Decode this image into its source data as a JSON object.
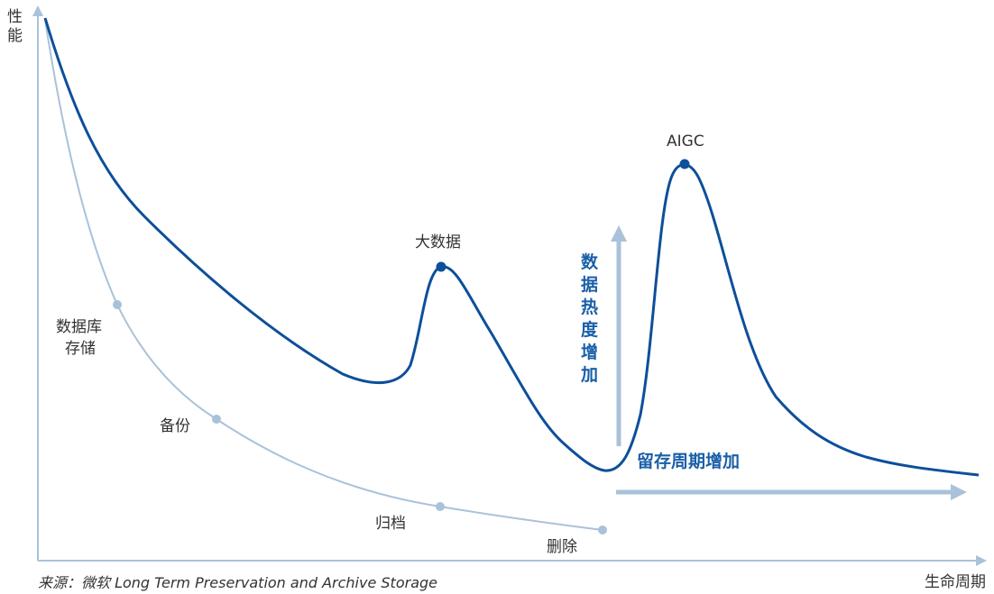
{
  "axes": {
    "y_label_line1": "性",
    "y_label_line2": "能",
    "x_label": "生命周期"
  },
  "labels": {
    "db_storage_line1": "数据库",
    "db_storage_line2": "存储",
    "backup": "备份",
    "archive": "归档",
    "delete": "删除",
    "bigdata": "大数据",
    "aigc": "AIGC",
    "heat_increase_chars": [
      "数",
      "据",
      "热",
      "度",
      "增",
      "加"
    ],
    "retention_increase": "留存周期增加"
  },
  "source": "来源：微软 Long Term Preservation and Archive Storage",
  "colors": {
    "dark_curve": "#0d4f9a",
    "light_curve": "#a9c2d9",
    "axis": "#a9c2d9",
    "arrow": "#a9c2d9",
    "accent_text": "#1a5fa8"
  }
}
